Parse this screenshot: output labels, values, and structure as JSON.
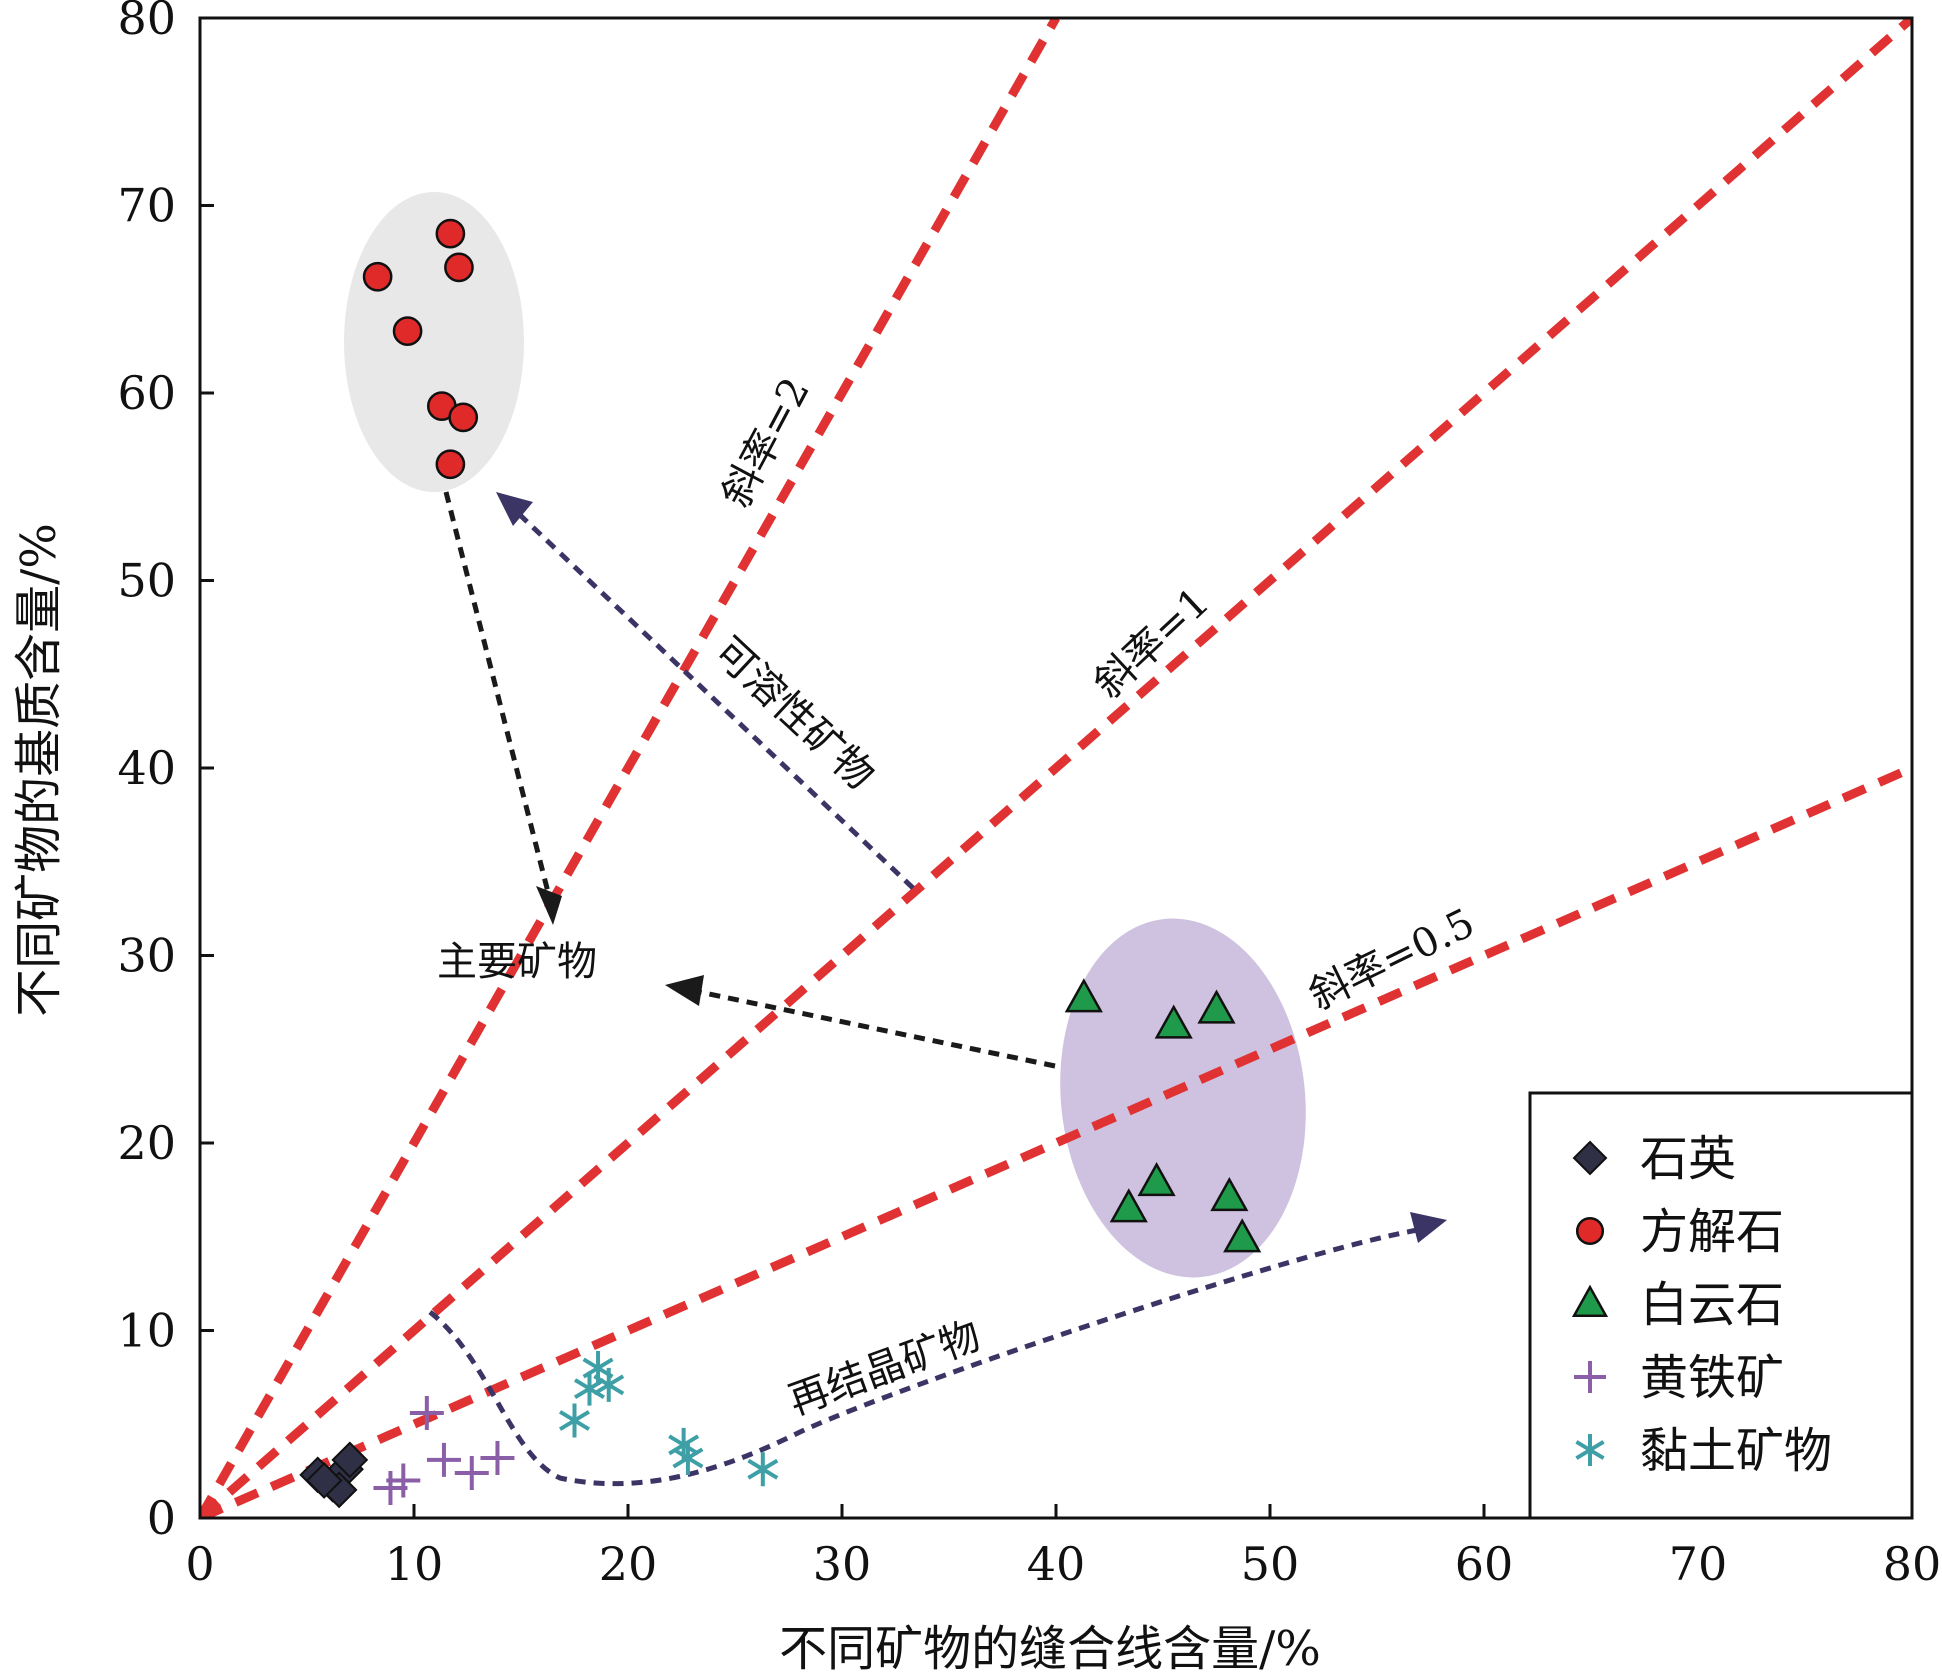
{
  "chart_data": {
    "type": "scatter",
    "xlabel": "不同矿物的缝合线含量/%",
    "ylabel": "不同矿物的基质含量/%",
    "xlim": [
      0,
      80
    ],
    "ylim": [
      0,
      80
    ],
    "xticks": [
      "0",
      "10",
      "20",
      "30",
      "40",
      "50",
      "60",
      "70",
      "80"
    ],
    "yticks": [
      "0",
      "10",
      "20",
      "30",
      "40",
      "50",
      "60",
      "70",
      "80"
    ],
    "legend_position": "bottom-right",
    "series": [
      {
        "name": "石英",
        "marker": "diamond",
        "color": "#2f2f45",
        "points": [
          [
            5.5,
            2.3
          ],
          [
            6.2,
            1.8
          ],
          [
            6.8,
            2.6
          ],
          [
            7.0,
            3.1
          ],
          [
            6.5,
            1.5
          ],
          [
            5.8,
            2.0
          ]
        ]
      },
      {
        "name": "方解石",
        "marker": "circle",
        "color": "#e02a2a",
        "points": [
          [
            8.3,
            66.2
          ],
          [
            9.7,
            63.3
          ],
          [
            11.7,
            68.5
          ],
          [
            12.1,
            66.7
          ],
          [
            11.3,
            59.3
          ],
          [
            12.3,
            58.7
          ],
          [
            11.7,
            56.2
          ]
        ]
      },
      {
        "name": "白云石",
        "marker": "triangle",
        "color": "#1e9a4a",
        "points": [
          [
            41.3,
            27.7
          ],
          [
            45.5,
            26.3
          ],
          [
            47.5,
            27.1
          ],
          [
            44.7,
            17.9
          ],
          [
            43.4,
            16.5
          ],
          [
            48.1,
            17.1
          ],
          [
            48.7,
            14.9
          ]
        ]
      },
      {
        "name": "黄铁矿",
        "marker": "plus",
        "color": "#8a5fa8",
        "points": [
          [
            10.6,
            5.6
          ],
          [
            11.4,
            3.1
          ],
          [
            12.7,
            2.4
          ],
          [
            13.9,
            3.2
          ],
          [
            8.9,
            1.6
          ],
          [
            9.5,
            2.0
          ]
        ]
      },
      {
        "name": "黏土矿物",
        "marker": "asterisk",
        "color": "#3ea0a6",
        "points": [
          [
            17.5,
            5.2
          ],
          [
            18.2,
            6.9
          ],
          [
            18.6,
            8.0
          ],
          [
            19.1,
            7.1
          ],
          [
            22.6,
            3.9
          ],
          [
            22.8,
            3.2
          ],
          [
            26.3,
            2.6
          ]
        ]
      }
    ],
    "reference_lines": [
      {
        "slope": 2,
        "label": "斜率=2"
      },
      {
        "slope": 1,
        "label": "斜率=1"
      },
      {
        "slope": 0.5,
        "label": "斜率=0.5"
      }
    ],
    "annotations": {
      "soluble": "可溶性矿物",
      "main": "主要矿物",
      "recrystal": "再结晶矿物"
    },
    "colors": {
      "reference_line": "#e03232",
      "calcite_cluster": "#e8e8e8",
      "dolomite_cluster": "#cfc2e0",
      "arrow_dark": "#1a1a1a",
      "arrow_purple": "#3b3566"
    }
  }
}
